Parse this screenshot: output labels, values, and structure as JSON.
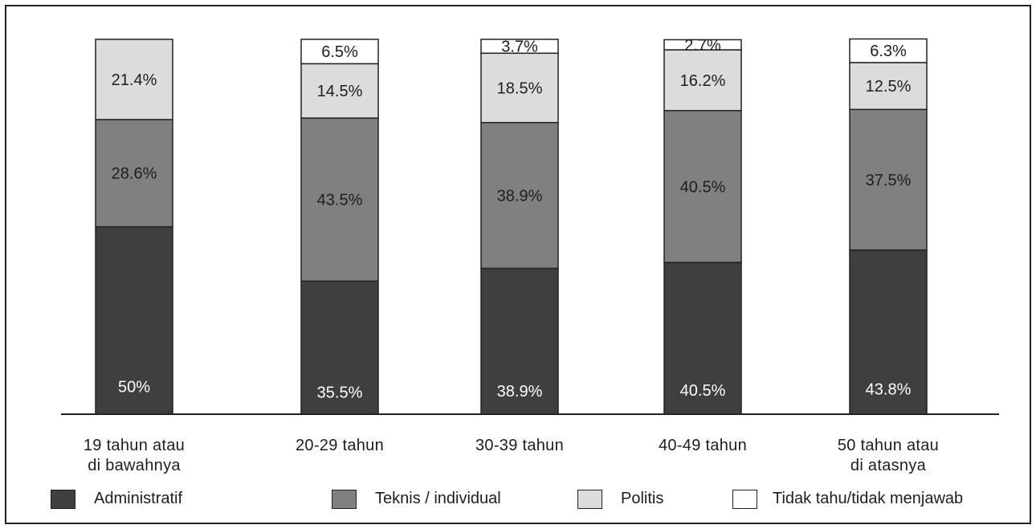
{
  "chart_data": {
    "type": "bar",
    "stacked": true,
    "categories": [
      "19 tahun atau\ndi bawahnya",
      "20-29 tahun",
      "30-39 tahun",
      "40-49 tahun",
      "50 tahun atau\ndi atasnya"
    ],
    "series": [
      {
        "name": "Administratif",
        "color": "#3f3f3f",
        "label_color": "#ffffff",
        "values": [
          50,
          35.5,
          38.9,
          40.5,
          43.8
        ],
        "labels": [
          "50%",
          "35.5%",
          "38.9%",
          "40.5%",
          "43.8%"
        ]
      },
      {
        "name": "Teknis / individual",
        "color": "#808082",
        "label_color": "#1e1e1e",
        "values": [
          28.6,
          43.5,
          38.9,
          40.5,
          37.5
        ],
        "labels": [
          "28.6%",
          "43.5%",
          "38.9%",
          "40.5%",
          "37.5%"
        ]
      },
      {
        "name": "Politis",
        "color": "#dcdcdc",
        "label_color": "#1e1e1e",
        "values": [
          21.4,
          14.5,
          18.5,
          16.2,
          12.5
        ],
        "labels": [
          "21.4%",
          "14.5%",
          "18.5%",
          "16.2%",
          "12.5%"
        ]
      },
      {
        "name": "Tidak tahu/tidak menjawab",
        "color": "#ffffff",
        "label_color": "#1e1e1e",
        "values": [
          0,
          6.5,
          3.7,
          2.7,
          6.3
        ],
        "labels": [
          "",
          "6.5%",
          "3.7%",
          "2.7%",
          "6.3%"
        ]
      }
    ],
    "ylim": [
      0,
      100
    ],
    "grid": false,
    "legend_position": "bottom"
  }
}
